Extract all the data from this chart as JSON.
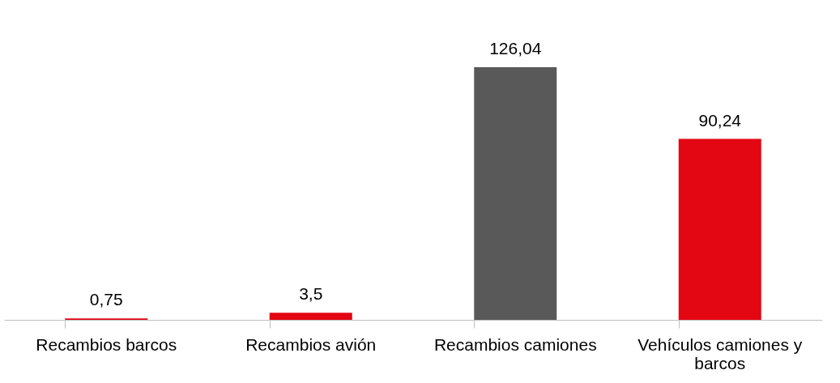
{
  "chart_data": {
    "type": "bar",
    "categories": [
      "Recambios barcos",
      "Recambios avión",
      "Recambios camiones",
      "Vehículos camiones y barcos"
    ],
    "values": [
      0.75,
      3.5,
      126.04,
      90.24
    ],
    "colors": [
      "#e30613",
      "#e30613",
      "#595959",
      "#e30613"
    ],
    "value_labels": [
      "0,75",
      "3,5",
      "126,04",
      "90,24"
    ],
    "grid": false
  }
}
